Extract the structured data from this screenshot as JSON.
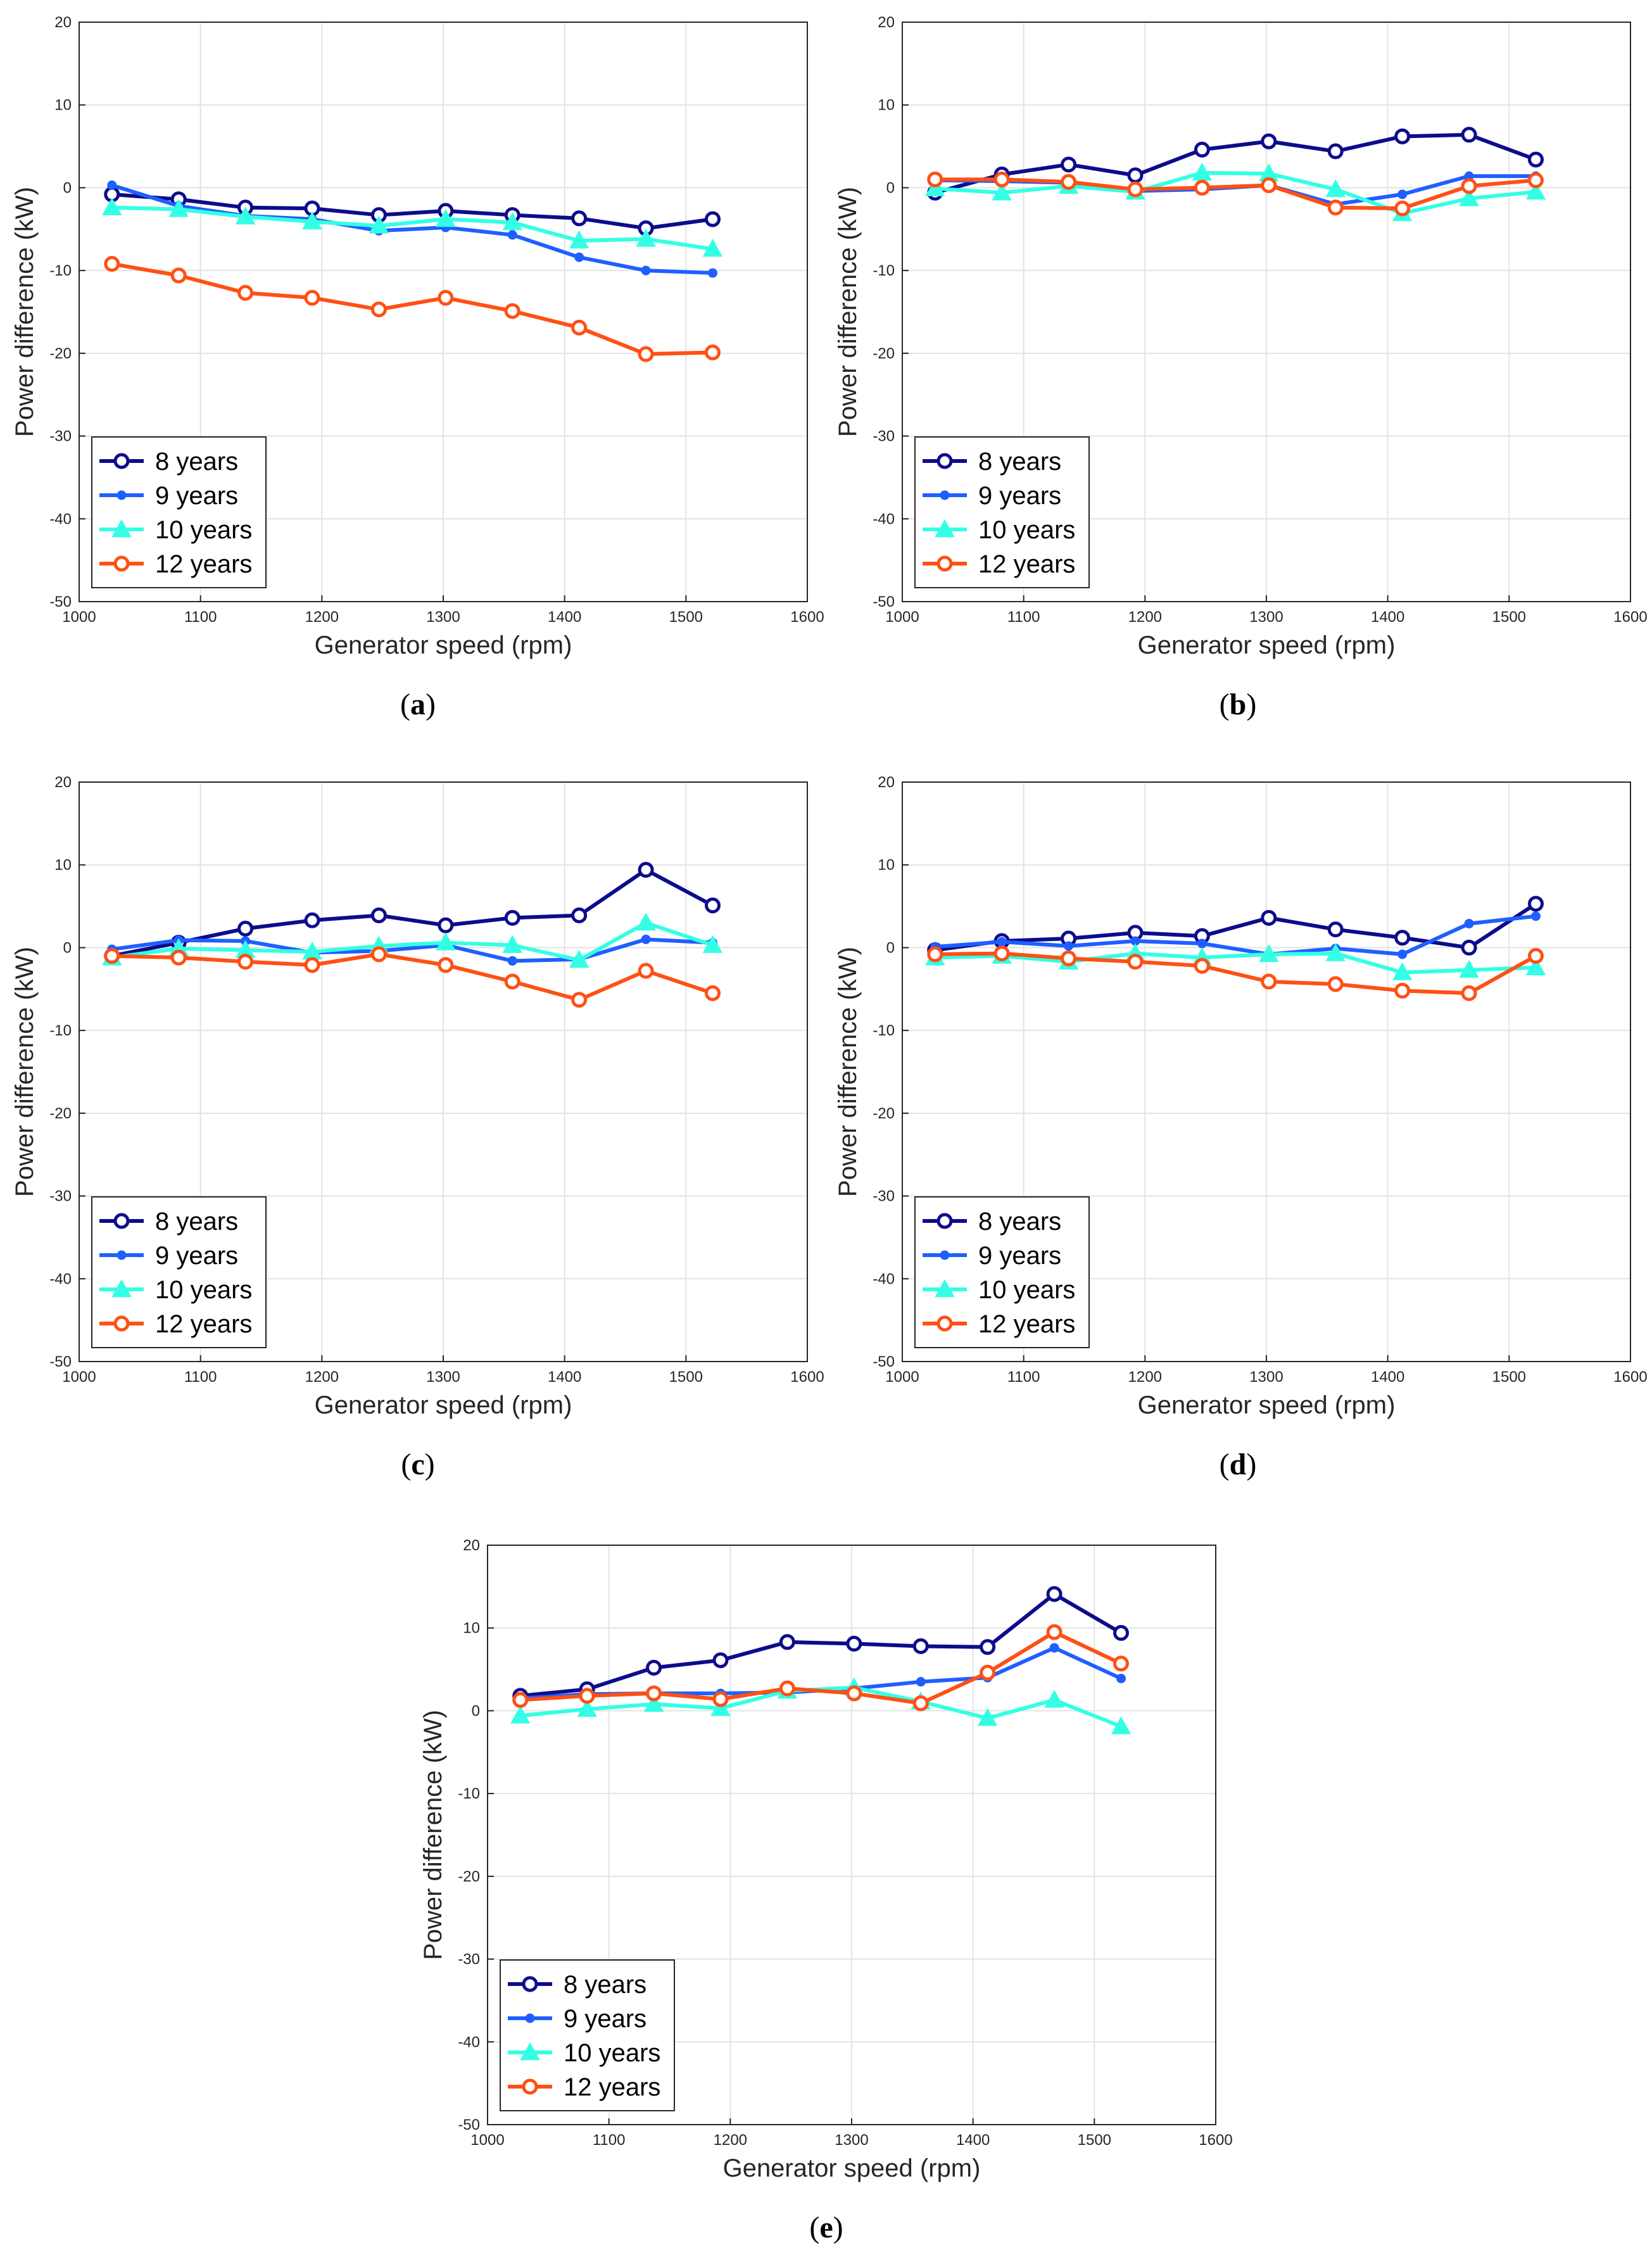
{
  "chart_data": [
    {
      "type": "line",
      "label": "a",
      "xlabel": "Generator speed (rpm)",
      "ylabel": "Power difference (kW)",
      "xlim": [
        1000,
        1600
      ],
      "ylim": [
        -50,
        20
      ],
      "xticks": [
        1000,
        1100,
        1200,
        1300,
        1400,
        1500,
        1600
      ],
      "yticks": [
        20,
        10,
        0,
        -10,
        -20,
        -30,
        -40,
        -50
      ],
      "grid": true,
      "legend_position": "bottom-left",
      "x": [
        1027,
        1082,
        1137,
        1192,
        1247,
        1302,
        1357,
        1412,
        1467,
        1522
      ],
      "series": [
        {
          "name": "8 years",
          "values": [
            -0.8,
            -1.4,
            -2.4,
            -2.5,
            -3.3,
            -2.8,
            -3.3,
            -3.7,
            -4.9,
            -3.8
          ]
        },
        {
          "name": "9 years",
          "values": [
            0.3,
            -2.2,
            -3.4,
            -3.8,
            -5.2,
            -4.8,
            -5.7,
            -8.4,
            -10.0,
            -10.3
          ]
        },
        {
          "name": "10 years",
          "values": [
            -2.4,
            -2.6,
            -3.5,
            -4.1,
            -4.6,
            -3.8,
            -4.2,
            -6.4,
            -6.2,
            -7.4
          ]
        },
        {
          "name": "12 years",
          "values": [
            -9.2,
            -10.6,
            -12.7,
            -13.3,
            -14.7,
            -13.3,
            -14.9,
            -16.9,
            -20.1,
            -19.9
          ]
        }
      ]
    },
    {
      "type": "line",
      "label": "b",
      "xlabel": "Generator speed (rpm)",
      "ylabel": "Power difference (kW)",
      "xlim": [
        1000,
        1600
      ],
      "ylim": [
        -50,
        20
      ],
      "xticks": [
        1000,
        1100,
        1200,
        1300,
        1400,
        1500,
        1600
      ],
      "yticks": [
        20,
        10,
        0,
        -10,
        -20,
        -30,
        -40,
        -50
      ],
      "grid": true,
      "legend_position": "bottom-left",
      "x": [
        1027,
        1082,
        1137,
        1192,
        1247,
        1302,
        1357,
        1412,
        1467,
        1522
      ],
      "series": [
        {
          "name": "8 years",
          "values": [
            -0.6,
            1.6,
            2.8,
            1.5,
            4.6,
            5.6,
            4.4,
            6.2,
            6.4,
            3.4
          ]
        },
        {
          "name": "9 years",
          "values": [
            0.9,
            0.8,
            0.6,
            -0.4,
            -0.2,
            0.3,
            -2.0,
            -0.8,
            1.4,
            1.4
          ]
        },
        {
          "name": "10 years",
          "values": [
            -0.1,
            -0.6,
            0.2,
            -0.5,
            1.8,
            1.7,
            -0.2,
            -3.1,
            -1.3,
            -0.5
          ]
        },
        {
          "name": "12 years",
          "values": [
            1.0,
            1.0,
            0.7,
            -0.2,
            0.0,
            0.3,
            -2.4,
            -2.5,
            0.2,
            0.9
          ]
        }
      ]
    },
    {
      "type": "line",
      "label": "c",
      "xlabel": "Generator speed (rpm)",
      "ylabel": "Power difference (kW)",
      "xlim": [
        1000,
        1600
      ],
      "ylim": [
        -50,
        20
      ],
      "xticks": [
        1000,
        1100,
        1200,
        1300,
        1400,
        1500,
        1600
      ],
      "yticks": [
        20,
        10,
        0,
        -10,
        -20,
        -30,
        -40,
        -50
      ],
      "grid": true,
      "legend_position": "bottom-left",
      "x": [
        1027,
        1082,
        1137,
        1192,
        1247,
        1302,
        1357,
        1412,
        1467,
        1522
      ],
      "series": [
        {
          "name": "8 years",
          "values": [
            -1.0,
            0.6,
            2.3,
            3.3,
            3.9,
            2.7,
            3.6,
            3.9,
            9.4,
            5.1
          ]
        },
        {
          "name": "9 years",
          "values": [
            -0.2,
            0.9,
            0.8,
            -0.6,
            -0.4,
            0.3,
            -1.6,
            -1.4,
            1.0,
            0.6
          ]
        },
        {
          "name": "10 years",
          "values": [
            -1.2,
            -0.1,
            -0.3,
            -0.5,
            0.2,
            0.6,
            0.3,
            -1.5,
            3.0,
            0.3
          ]
        },
        {
          "name": "12 years",
          "values": [
            -1.0,
            -1.2,
            -1.7,
            -2.1,
            -0.8,
            -2.1,
            -4.1,
            -6.3,
            -2.8,
            -5.5
          ]
        }
      ]
    },
    {
      "type": "line",
      "label": "d",
      "xlabel": "Generator speed (rpm)",
      "ylabel": "Power difference (kW)",
      "xlim": [
        1000,
        1600
      ],
      "ylim": [
        -50,
        20
      ],
      "xticks": [
        1000,
        1100,
        1200,
        1300,
        1400,
        1500,
        1600
      ],
      "yticks": [
        20,
        10,
        0,
        -10,
        -20,
        -30,
        -40,
        -50
      ],
      "grid": true,
      "legend_position": "bottom-left",
      "x": [
        1027,
        1082,
        1137,
        1192,
        1247,
        1302,
        1357,
        1412,
        1467,
        1522
      ],
      "series": [
        {
          "name": "8 years",
          "values": [
            -0.3,
            0.8,
            1.1,
            1.8,
            1.4,
            3.6,
            2.2,
            1.2,
            0.0,
            5.3
          ]
        },
        {
          "name": "9 years",
          "values": [
            0.1,
            0.7,
            0.2,
            0.8,
            0.5,
            -0.8,
            -0.1,
            -0.8,
            2.9,
            3.8
          ]
        },
        {
          "name": "10 years",
          "values": [
            -1.2,
            -1.0,
            -1.7,
            -0.7,
            -1.2,
            -0.8,
            -0.7,
            -3.0,
            -2.7,
            -2.4
          ]
        },
        {
          "name": "12 years",
          "values": [
            -0.8,
            -0.7,
            -1.3,
            -1.7,
            -2.2,
            -4.1,
            -4.4,
            -5.2,
            -5.5,
            -1.0
          ]
        }
      ]
    },
    {
      "type": "line",
      "label": "e",
      "xlabel": "Generator speed (rpm)",
      "ylabel": "Power difference (kW)",
      "xlim": [
        1000,
        1600
      ],
      "ylim": [
        -50,
        20
      ],
      "xticks": [
        1000,
        1100,
        1200,
        1300,
        1400,
        1500,
        1600
      ],
      "yticks": [
        20,
        10,
        0,
        -10,
        -20,
        -30,
        -40,
        -50
      ],
      "grid": true,
      "legend_position": "bottom-left",
      "x": [
        1027,
        1082,
        1137,
        1192,
        1247,
        1302,
        1357,
        1412,
        1467,
        1522
      ],
      "series": [
        {
          "name": "8 years",
          "values": [
            1.8,
            2.6,
            5.2,
            6.1,
            8.3,
            8.1,
            7.8,
            7.7,
            14.1,
            9.4
          ]
        },
        {
          "name": "9 years",
          "values": [
            1.5,
            2.0,
            2.1,
            2.1,
            2.2,
            2.7,
            3.5,
            4.0,
            7.6,
            3.9
          ]
        },
        {
          "name": "10 years",
          "values": [
            -0.6,
            0.2,
            0.8,
            0.3,
            2.4,
            2.8,
            1.1,
            -0.9,
            1.3,
            -1.9
          ]
        },
        {
          "name": "12 years",
          "values": [
            1.3,
            1.8,
            2.1,
            1.4,
            2.7,
            2.1,
            0.9,
            4.6,
            9.5,
            5.7
          ]
        }
      ]
    }
  ],
  "series_styles": [
    {
      "name": "8 years",
      "color": "#0c0c8c",
      "marker": "circle-open"
    },
    {
      "name": "9 years",
      "color": "#1f5fff",
      "marker": "dot"
    },
    {
      "name": "10 years",
      "color": "#33ffe4",
      "marker": "triangle"
    },
    {
      "name": "12 years",
      "color": "#ff5014",
      "marker": "circle-open"
    }
  ],
  "captions": [
    "a",
    "b",
    "c",
    "d",
    "e"
  ]
}
